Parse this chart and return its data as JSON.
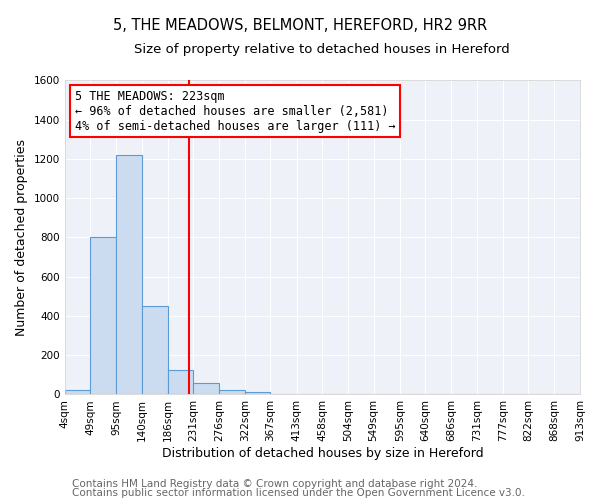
{
  "title": "5, THE MEADOWS, BELMONT, HEREFORD, HR2 9RR",
  "subtitle": "Size of property relative to detached houses in Hereford",
  "xlabel": "Distribution of detached houses by size in Hereford",
  "ylabel": "Number of detached properties",
  "footer_line1": "Contains HM Land Registry data © Crown copyright and database right 2024.",
  "footer_line2": "Contains public sector information licensed under the Open Government Licence v3.0.",
  "bin_edges": [
    4,
    49,
    95,
    140,
    186,
    231,
    276,
    322,
    367,
    413,
    458,
    504,
    549,
    595,
    640,
    686,
    731,
    777,
    822,
    868,
    913
  ],
  "bar_heights": [
    25,
    800,
    1220,
    450,
    125,
    60,
    25,
    10,
    0,
    0,
    0,
    0,
    0,
    0,
    0,
    0,
    0,
    0,
    0,
    0
  ],
  "bar_color": "#ccdcf0",
  "bar_edge_color": "#5b9bd5",
  "reference_line_x": 223,
  "reference_line_color": "red",
  "annotation_line1": "5 THE MEADOWS: 223sqm",
  "annotation_line2": "← 96% of detached houses are smaller (2,581)",
  "annotation_line3": "4% of semi-detached houses are larger (111) →",
  "ylim": [
    0,
    1600
  ],
  "yticks": [
    0,
    200,
    400,
    600,
    800,
    1000,
    1200,
    1400,
    1600
  ],
  "background_color": "#eef2f8",
  "grid_color": "#ffffff",
  "title_fontsize": 10.5,
  "subtitle_fontsize": 9.5,
  "axis_label_fontsize": 9,
  "tick_label_fontsize": 7.5,
  "annotation_fontsize": 8.5,
  "footer_fontsize": 7.5
}
